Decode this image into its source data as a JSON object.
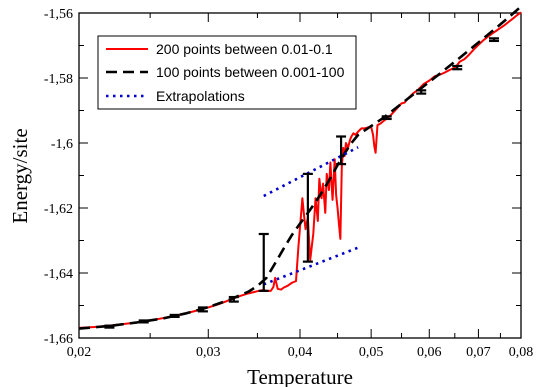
{
  "chart_data": {
    "type": "line",
    "xlabel": "Temperature",
    "ylabel": "Energy/site",
    "xlim": [
      0.02,
      0.08
    ],
    "ylim": [
      -1.66,
      -1.56
    ],
    "x_ticks": [
      {
        "value": 0.02,
        "label": "0,02"
      },
      {
        "value": 0.03,
        "label": "0,03"
      },
      {
        "value": 0.04,
        "label": "0,04"
      },
      {
        "value": 0.05,
        "label": "0,05"
      },
      {
        "value": 0.06,
        "label": "0,06"
      },
      {
        "value": 0.07,
        "label": "0,07"
      },
      {
        "value": 0.08,
        "label": "0,08"
      }
    ],
    "y_ticks": [
      {
        "value": -1.66,
        "label": "-1,66"
      },
      {
        "value": -1.64,
        "label": "-1,64"
      },
      {
        "value": -1.62,
        "label": "-1,62"
      },
      {
        "value": -1.6,
        "label": "-1,6"
      },
      {
        "value": -1.58,
        "label": "-1,58"
      },
      {
        "value": -1.56,
        "label": "-1,56"
      }
    ],
    "legend_position": "top-left",
    "series": [
      {
        "name": "200 points between 0.01-0.1",
        "color": "#ff0000",
        "style": "solid",
        "points": [
          [
            0.02,
            -1.6569
          ],
          [
            0.021,
            -1.6566
          ],
          [
            0.022,
            -1.6562
          ],
          [
            0.023,
            -1.6557
          ],
          [
            0.024,
            -1.6552
          ],
          [
            0.025,
            -1.6546
          ],
          [
            0.026,
            -1.6539
          ],
          [
            0.027,
            -1.6532
          ],
          [
            0.028,
            -1.6524
          ],
          [
            0.029,
            -1.6515
          ],
          [
            0.03,
            -1.6506
          ],
          [
            0.031,
            -1.6496
          ],
          [
            0.032,
            -1.6484
          ],
          [
            0.033,
            -1.6472
          ],
          [
            0.034,
            -1.6463
          ],
          [
            0.035,
            -1.6456
          ],
          [
            0.0357,
            -1.6452
          ],
          [
            0.036,
            -1.6455
          ],
          [
            0.0365,
            -1.6455
          ],
          [
            0.0368,
            -1.6443
          ],
          [
            0.037,
            -1.6415
          ],
          [
            0.0373,
            -1.6449
          ],
          [
            0.0377,
            -1.6451
          ],
          [
            0.038,
            -1.6445
          ],
          [
            0.0385,
            -1.6439
          ],
          [
            0.039,
            -1.643
          ],
          [
            0.0395,
            -1.6425
          ],
          [
            0.0398,
            -1.632
          ],
          [
            0.04,
            -1.626
          ],
          [
            0.0403,
            -1.617
          ],
          [
            0.0405,
            -1.622
          ],
          [
            0.0407,
            -1.6265
          ],
          [
            0.041,
            -1.623
          ],
          [
            0.0413,
            -1.636
          ],
          [
            0.0417,
            -1.628
          ],
          [
            0.042,
            -1.617
          ],
          [
            0.0423,
            -1.624
          ],
          [
            0.0425,
            -1.611
          ],
          [
            0.0428,
            -1.617
          ],
          [
            0.043,
            -1.6125
          ],
          [
            0.0433,
            -1.6215
          ],
          [
            0.0435,
            -1.6095
          ],
          [
            0.0438,
            -1.6145
          ],
          [
            0.044,
            -1.606
          ],
          [
            0.0443,
            -1.6175
          ],
          [
            0.0446,
            -1.605
          ],
          [
            0.0448,
            -1.616
          ],
          [
            0.045,
            -1.62
          ],
          [
            0.0452,
            -1.625
          ],
          [
            0.0454,
            -1.6295
          ],
          [
            0.0456,
            -1.6075
          ],
          [
            0.0458,
            -1.6015
          ],
          [
            0.046,
            -1.604
          ],
          [
            0.0462,
            -1.6
          ],
          [
            0.0465,
            -1.6015
          ],
          [
            0.0468,
            -1.599
          ],
          [
            0.047,
            -1.598
          ],
          [
            0.0473,
            -1.597
          ],
          [
            0.0476,
            -1.5975
          ],
          [
            0.048,
            -1.5965
          ],
          [
            0.0485,
            -1.5955
          ],
          [
            0.049,
            -1.5955
          ],
          [
            0.0495,
            -1.5952
          ],
          [
            0.05,
            -1.595
          ],
          [
            0.0503,
            -1.5975
          ],
          [
            0.0505,
            -1.601
          ],
          [
            0.0507,
            -1.603
          ],
          [
            0.0509,
            -1.5975
          ],
          [
            0.051,
            -1.5945
          ],
          [
            0.0515,
            -1.594
          ],
          [
            0.052,
            -1.5932
          ],
          [
            0.053,
            -1.5918
          ],
          [
            0.054,
            -1.5898
          ],
          [
            0.055,
            -1.5878
          ],
          [
            0.0555,
            -1.5876
          ],
          [
            0.056,
            -1.5865
          ],
          [
            0.057,
            -1.5848
          ],
          [
            0.058,
            -1.5835
          ],
          [
            0.059,
            -1.5818
          ],
          [
            0.06,
            -1.5808
          ],
          [
            0.061,
            -1.5795
          ],
          [
            0.062,
            -1.579
          ],
          [
            0.063,
            -1.5783
          ],
          [
            0.064,
            -1.5775
          ],
          [
            0.065,
            -1.5768
          ],
          [
            0.0655,
            -1.576
          ],
          [
            0.066,
            -1.575
          ],
          [
            0.067,
            -1.5742
          ],
          [
            0.068,
            -1.5728
          ],
          [
            0.069,
            -1.5712
          ],
          [
            0.07,
            -1.5698
          ],
          [
            0.071,
            -1.5685
          ],
          [
            0.072,
            -1.5674
          ],
          [
            0.073,
            -1.5664
          ],
          [
            0.074,
            -1.5655
          ],
          [
            0.075,
            -1.5646
          ],
          [
            0.076,
            -1.5637
          ],
          [
            0.077,
            -1.5627
          ],
          [
            0.078,
            -1.5617
          ],
          [
            0.079,
            -1.5607
          ],
          [
            0.08,
            -1.5598
          ]
        ]
      },
      {
        "name": "100 points between 0.001-100",
        "color": "#000000",
        "style": "dashed",
        "points": [
          [
            0.02,
            -1.6571
          ],
          [
            0.022,
            -1.6563
          ],
          [
            0.024,
            -1.6552
          ],
          [
            0.026,
            -1.654
          ],
          [
            0.028,
            -1.6524
          ],
          [
            0.03,
            -1.6505
          ],
          [
            0.032,
            -1.6483
          ],
          [
            0.034,
            -1.6458
          ],
          [
            0.035,
            -1.644
          ],
          [
            0.036,
            -1.6415
          ],
          [
            0.037,
            -1.637
          ],
          [
            0.038,
            -1.6325
          ],
          [
            0.039,
            -1.6283
          ],
          [
            0.04,
            -1.6248
          ],
          [
            0.041,
            -1.6215
          ],
          [
            0.042,
            -1.6182
          ],
          [
            0.043,
            -1.6146
          ],
          [
            0.044,
            -1.6108
          ],
          [
            0.045,
            -1.6068
          ],
          [
            0.046,
            -1.6032
          ],
          [
            0.047,
            -1.6
          ],
          [
            0.048,
            -1.5975
          ],
          [
            0.05,
            -1.5948
          ],
          [
            0.052,
            -1.5922
          ],
          [
            0.054,
            -1.5893
          ],
          [
            0.056,
            -1.5865
          ],
          [
            0.058,
            -1.5838
          ],
          [
            0.06,
            -1.5812
          ],
          [
            0.062,
            -1.5787
          ],
          [
            0.064,
            -1.5762
          ],
          [
            0.066,
            -1.5738
          ],
          [
            0.068,
            -1.5714
          ],
          [
            0.07,
            -1.5691
          ],
          [
            0.072,
            -1.5668
          ],
          [
            0.074,
            -1.5646
          ],
          [
            0.076,
            -1.5624
          ],
          [
            0.078,
            -1.5602
          ],
          [
            0.08,
            -1.558
          ]
        ]
      },
      {
        "name": "Extrapolations",
        "color": "#0000cc",
        "style": "dotted",
        "segments": [
          [
            [
              0.0357,
              -1.6163
            ],
            [
              0.048,
              -1.6013
            ]
          ],
          [
            [
              0.0357,
              -1.6435
            ],
            [
              0.048,
              -1.6322
            ]
          ]
        ]
      }
    ],
    "error_bars": [
      {
        "x": 0.022,
        "y": -1.6565,
        "low": -1.6568,
        "high": -1.6562
      },
      {
        "x": 0.0245,
        "y": -1.6549,
        "low": -1.6552,
        "high": -1.6546
      },
      {
        "x": 0.027,
        "y": -1.6532,
        "low": -1.6535,
        "high": -1.6529
      },
      {
        "x": 0.0295,
        "y": -1.6512,
        "low": -1.6518,
        "high": -1.6506
      },
      {
        "x": 0.0325,
        "y": -1.6481,
        "low": -1.6488,
        "high": -1.6474
      },
      {
        "x": 0.0357,
        "y": -1.6365,
        "low": -1.6455,
        "high": -1.628
      },
      {
        "x": 0.041,
        "y": -1.6235,
        "low": -1.6365,
        "high": -1.6095
      },
      {
        "x": 0.0455,
        "y": -1.6015,
        "low": -1.6065,
        "high": -1.598
      },
      {
        "x": 0.0525,
        "y": -1.5922,
        "low": -1.5926,
        "high": -1.5918
      },
      {
        "x": 0.0585,
        "y": -1.5843,
        "low": -1.5848,
        "high": -1.5838
      },
      {
        "x": 0.0655,
        "y": -1.5768,
        "low": -1.5773,
        "high": -1.5763
      },
      {
        "x": 0.0735,
        "y": -1.5682,
        "low": -1.5686,
        "high": -1.5678
      }
    ]
  }
}
